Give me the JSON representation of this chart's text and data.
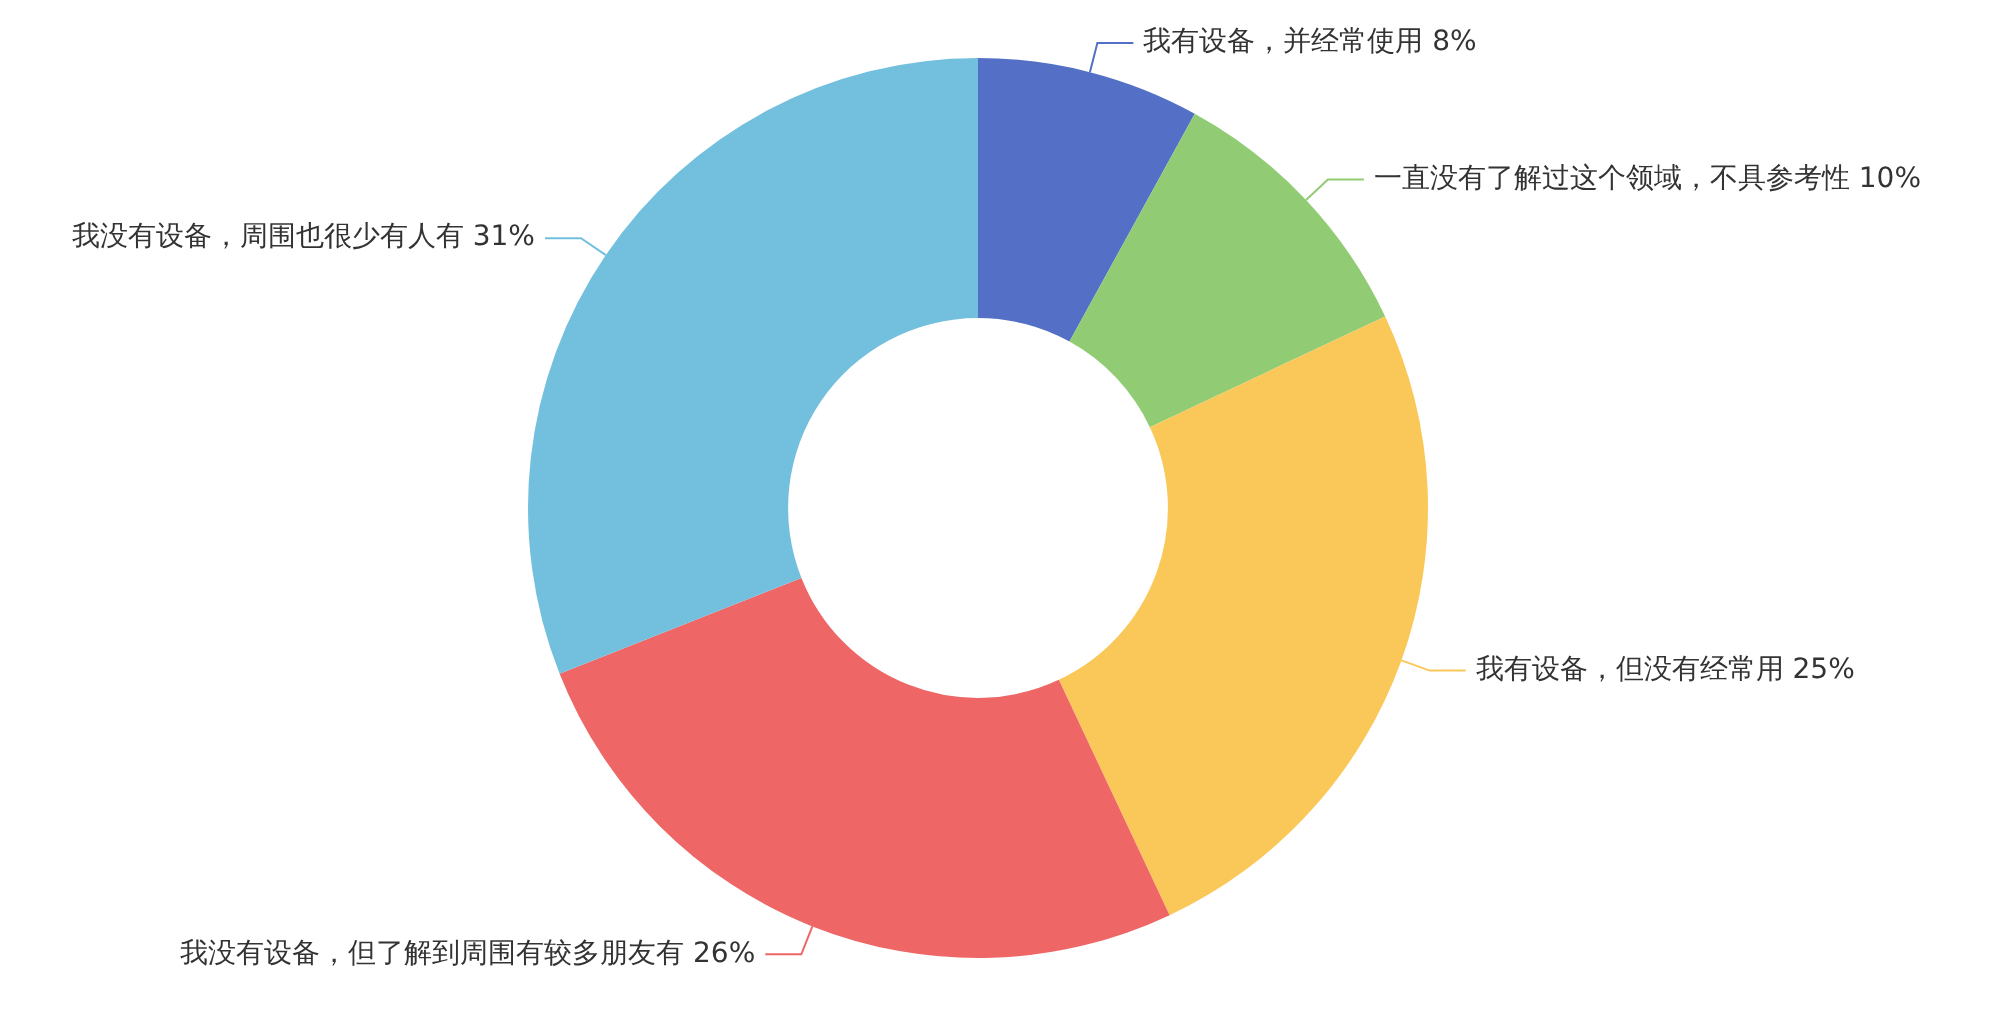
{
  "chart_data": {
    "type": "donut",
    "categories": [
      "我有设备，并经常使用",
      "一直没有了解过这个领域，不具参考性",
      "我有设备，但没有经常用",
      "我没有设备，但了解到周围有较多朋友有",
      "我没有设备，周围也很少有人有"
    ],
    "values": [
      8,
      10,
      25,
      26,
      31
    ],
    "colors": [
      "#5470c6",
      "#91cc75",
      "#fac858",
      "#ee6666",
      "#73c0de"
    ],
    "value_labels": [
      "8%",
      "10%",
      "25%",
      "26%",
      "31%"
    ]
  }
}
